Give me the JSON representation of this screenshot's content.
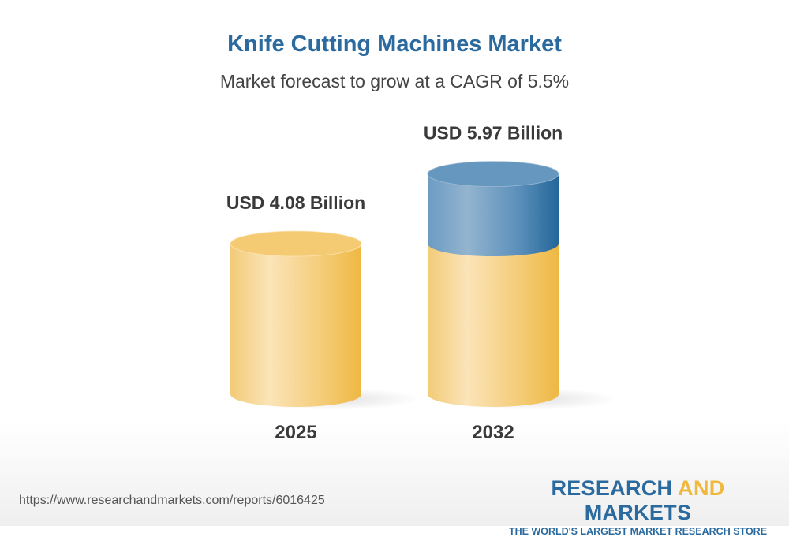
{
  "title": "Knife Cutting Machines Market",
  "subtitle": "Market forecast to grow at a CAGR of 5.5%",
  "chart_data": {
    "type": "bar",
    "style": "3d-cylinder",
    "categories": [
      "2025",
      "2032"
    ],
    "values": [
      4.08,
      5.97
    ],
    "data_labels": [
      "USD 4.08 Billion",
      "USD 5.97 Billion"
    ],
    "unit": "USD Billion",
    "cagr": "5.5%",
    "colors": {
      "base": "#f2c35a",
      "growth": "#2b6a9e"
    }
  },
  "footer": {
    "url": "https://www.researchandmarkets.com/reports/6016425",
    "logo_part1": "RESEARCH ",
    "logo_part2": "AND",
    "logo_part3": " MARKETS",
    "tagline": "THE WORLD'S LARGEST MARKET RESEARCH STORE"
  }
}
